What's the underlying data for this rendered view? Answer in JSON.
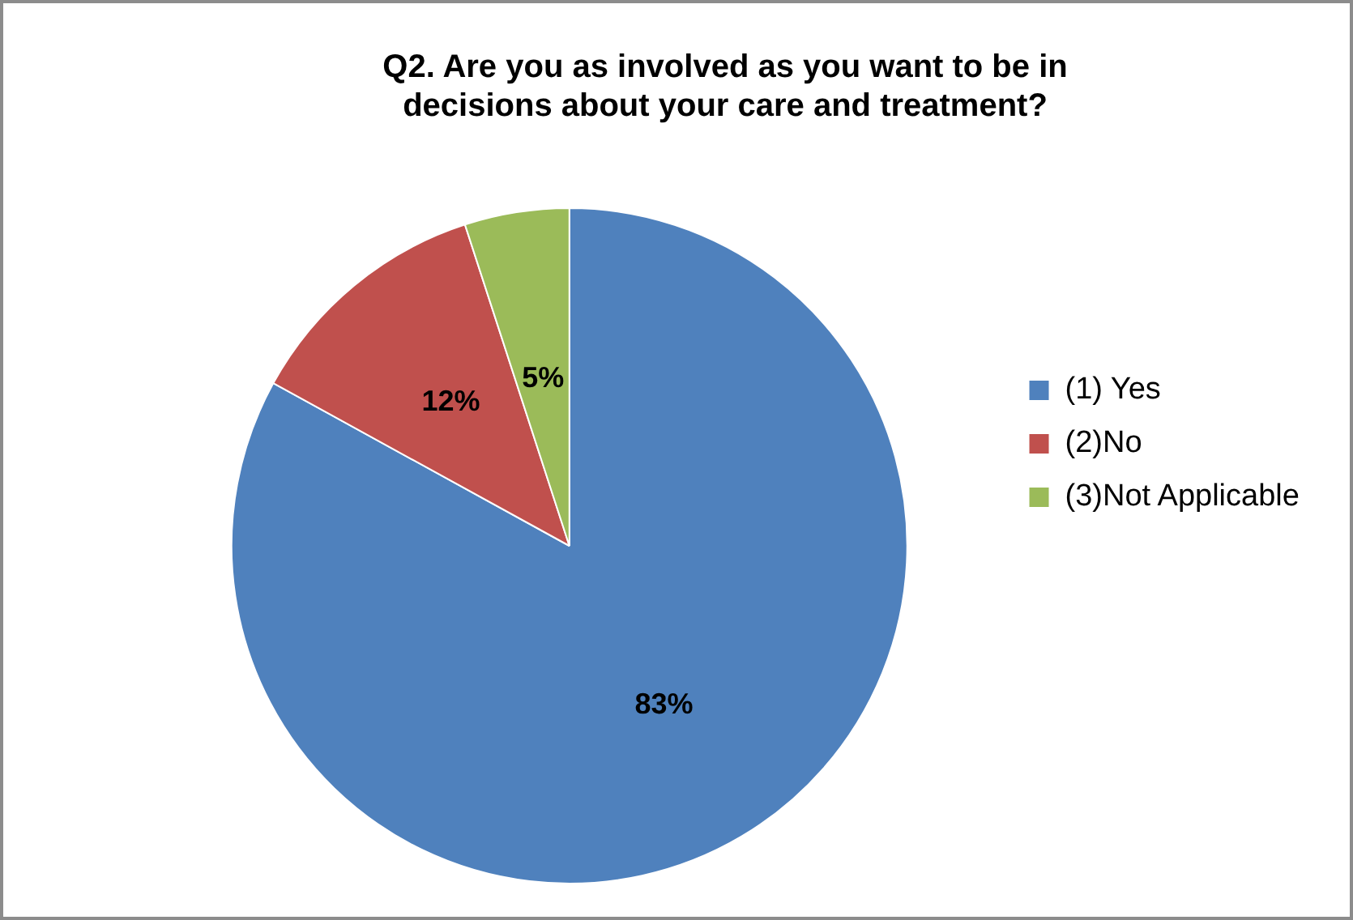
{
  "chart_data": {
    "type": "pie",
    "title": "Q2. Are you as involved as you want to be in decisions about your care and treatment?",
    "categories": [
      "(1) Yes",
      "(2)No",
      "(3)Not Applicable"
    ],
    "values": [
      83,
      12,
      5
    ],
    "value_labels": [
      "83%",
      "12%",
      "5%"
    ],
    "colors": [
      "#4f81bd",
      "#c0504d",
      "#9bbb59"
    ],
    "legend": "right"
  }
}
